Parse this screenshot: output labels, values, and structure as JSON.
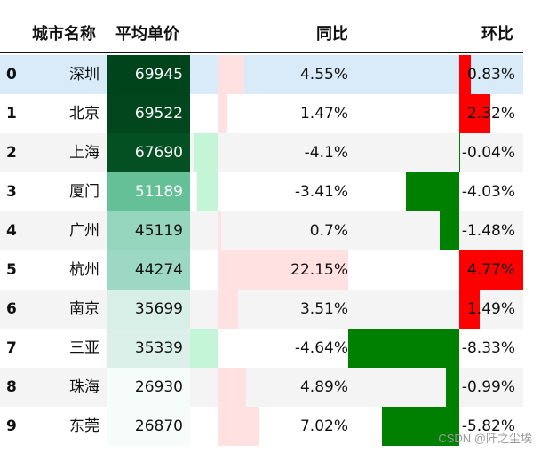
{
  "headers": {
    "city": "城市名称",
    "price": "平均单价",
    "yoy": "同比",
    "mom": "环比"
  },
  "colors": {
    "highlight_row": "#d9eaf9",
    "stripe": "#f4f4f4",
    "plain": "#ffffff",
    "yoy_positive": "#ffe1e1",
    "yoy_negative": "#c3f5d6",
    "mom_positive": "#ff0000",
    "mom_negative": "#008000",
    "price_scale_low": "#f6fcfa",
    "price_scale_high": "#00441b"
  },
  "chart_data": {
    "type": "table",
    "columns": [
      "城市名称",
      "平均单价",
      "同比",
      "环比"
    ],
    "rows": [
      {
        "index": "0",
        "city": "深圳",
        "price": 69945,
        "price_label": "69945",
        "yoy": 4.55,
        "yoy_label": "4.55%",
        "mom": 0.83,
        "mom_label": "0.83%"
      },
      {
        "index": "1",
        "city": "北京",
        "price": 69522,
        "price_label": "69522",
        "yoy": 1.47,
        "yoy_label": "1.47%",
        "mom": 2.32,
        "mom_label": "2.32%"
      },
      {
        "index": "2",
        "city": "上海",
        "price": 67690,
        "price_label": "67690",
        "yoy": -4.1,
        "yoy_label": "-4.1%",
        "mom": -0.04,
        "mom_label": "-0.04%"
      },
      {
        "index": "3",
        "city": "厦门",
        "price": 51189,
        "price_label": "51189",
        "yoy": -3.41,
        "yoy_label": "-3.41%",
        "mom": -4.03,
        "mom_label": "-4.03%"
      },
      {
        "index": "4",
        "city": "广州",
        "price": 45119,
        "price_label": "45119",
        "yoy": 0.7,
        "yoy_label": "0.7%",
        "mom": -1.48,
        "mom_label": "-1.48%"
      },
      {
        "index": "5",
        "city": "杭州",
        "price": 44274,
        "price_label": "44274",
        "yoy": 22.15,
        "yoy_label": "22.15%",
        "mom": 4.77,
        "mom_label": "4.77%"
      },
      {
        "index": "6",
        "city": "南京",
        "price": 35699,
        "price_label": "35699",
        "yoy": 3.51,
        "yoy_label": "3.51%",
        "mom": 1.49,
        "mom_label": "1.49%"
      },
      {
        "index": "7",
        "city": "三亚",
        "price": 35339,
        "price_label": "35339",
        "yoy": -4.64,
        "yoy_label": "-4.64%",
        "mom": -8.33,
        "mom_label": "-8.33%"
      },
      {
        "index": "8",
        "city": "珠海",
        "price": 26930,
        "price_label": "26930",
        "yoy": 4.89,
        "yoy_label": "4.89%",
        "mom": -0.99,
        "mom_label": "-0.99%"
      },
      {
        "index": "9",
        "city": "东莞",
        "price": 26870,
        "price_label": "26870",
        "yoy": 7.02,
        "yoy_label": "7.02%",
        "mom": -5.82,
        "mom_label": "-5.82%"
      }
    ],
    "highlighted_row": 0
  },
  "watermark": "CSDN @阡之尘埃"
}
